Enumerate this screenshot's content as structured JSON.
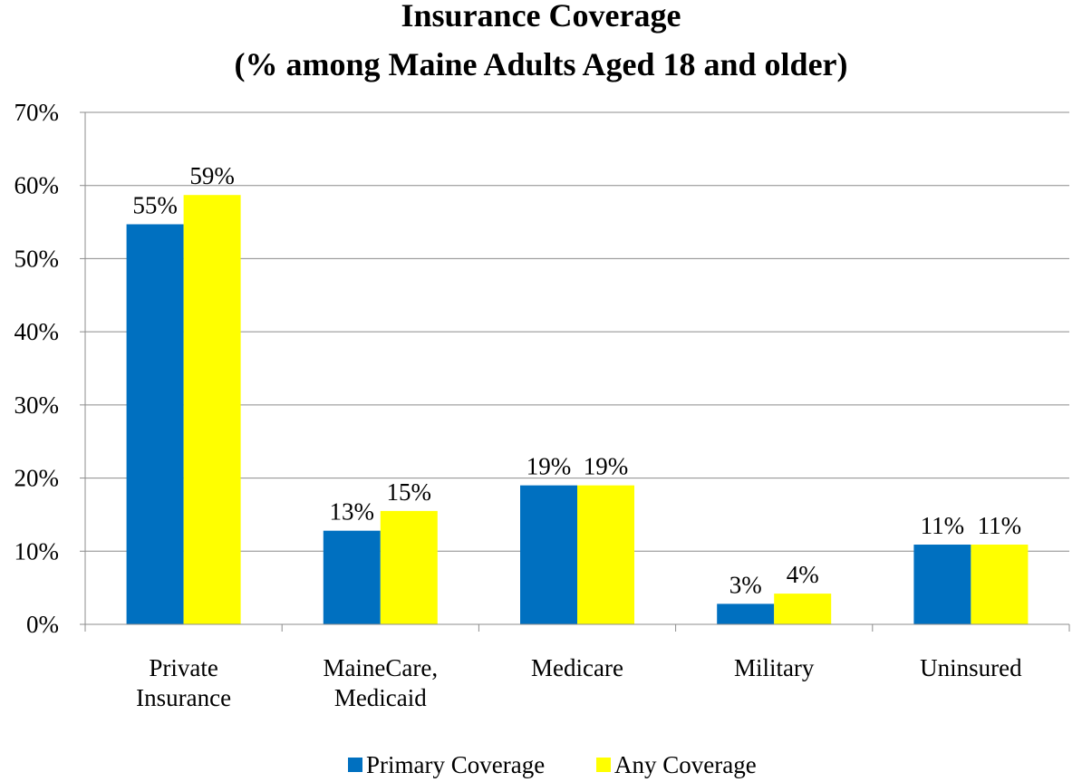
{
  "chart_data": {
    "type": "bar",
    "title": "Insurance Coverage",
    "subtitle": "(% among Maine Adults Aged 18 and older)",
    "categories": [
      [
        "Private",
        "Insurance"
      ],
      [
        "MaineCare,",
        "Medicaid"
      ],
      [
        "Medicare"
      ],
      [
        "Military"
      ],
      [
        "Uninsured"
      ]
    ],
    "series": [
      {
        "name": "Primary Coverage",
        "color": "#0070c0",
        "values": [
          54.7,
          12.8,
          19.0,
          2.8,
          10.9
        ],
        "labels": [
          "55%",
          "13%",
          "19%",
          "3%",
          "11%"
        ]
      },
      {
        "name": "Any Coverage",
        "color": "#ffff00",
        "values": [
          58.7,
          15.5,
          19.0,
          4.2,
          10.9
        ],
        "labels": [
          "59%",
          "15%",
          "19%",
          "4%",
          "11%"
        ]
      }
    ],
    "ylim": [
      0,
      70
    ],
    "yticks": [
      0,
      10,
      20,
      30,
      40,
      50,
      60,
      70
    ],
    "ytick_labels": [
      "0%",
      "10%",
      "20%",
      "30%",
      "40%",
      "50%",
      "60%",
      "70%"
    ],
    "grid": true,
    "legend_position": "bottom"
  }
}
